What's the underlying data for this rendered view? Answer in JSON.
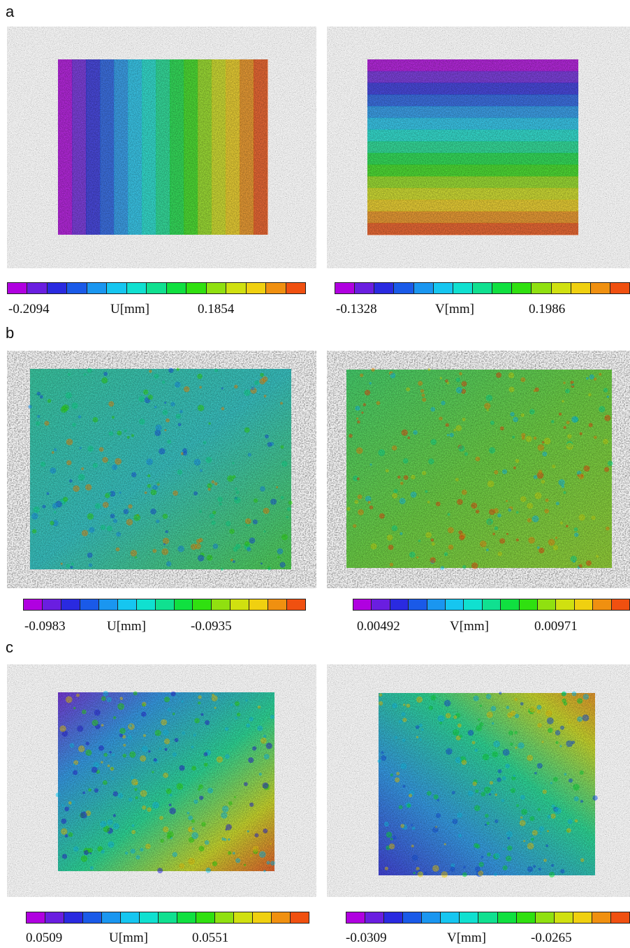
{
  "figure": {
    "sections": [
      {
        "letter": "a",
        "panels": [
          {
            "field": "U",
            "pattern": "vertical-bands",
            "scale_min": "-0.2094",
            "unit": "U[mm]",
            "scale_max": "0.1854"
          },
          {
            "field": "V",
            "pattern": "horizontal-bands",
            "scale_min": "-0.1328",
            "unit": "V[mm]",
            "scale_max": "0.1986"
          }
        ]
      },
      {
        "letter": "b",
        "panels": [
          {
            "field": "U",
            "pattern": "noisy-uniform-cyan-green",
            "scale_min": "-0.0983",
            "unit": "U[mm]",
            "scale_max": "-0.0935"
          },
          {
            "field": "V",
            "pattern": "noisy-uniform-green-orange",
            "scale_min": "0.00492",
            "unit": "V[mm]",
            "scale_max": "0.00971"
          }
        ]
      },
      {
        "letter": "c",
        "panels": [
          {
            "field": "U",
            "pattern": "gradient-top-left-to-bottom-right",
            "scale_min": "0.0509",
            "unit": "U[mm]",
            "scale_max": "0.0551"
          },
          {
            "field": "V",
            "pattern": "gradient-left-to-top-right",
            "scale_min": "-0.0309",
            "unit": "V[mm]",
            "scale_max": "-0.0265"
          }
        ]
      }
    ],
    "colormap": [
      "#b000e0",
      "#6a1ee0",
      "#2a2ae0",
      "#1a5ae8",
      "#1a96f0",
      "#16c6f0",
      "#10e0d0",
      "#10e090",
      "#10e040",
      "#30e010",
      "#90e010",
      "#d0e010",
      "#f0d010",
      "#f09010",
      "#f05010"
    ],
    "background_color": "#8a8a8a"
  }
}
